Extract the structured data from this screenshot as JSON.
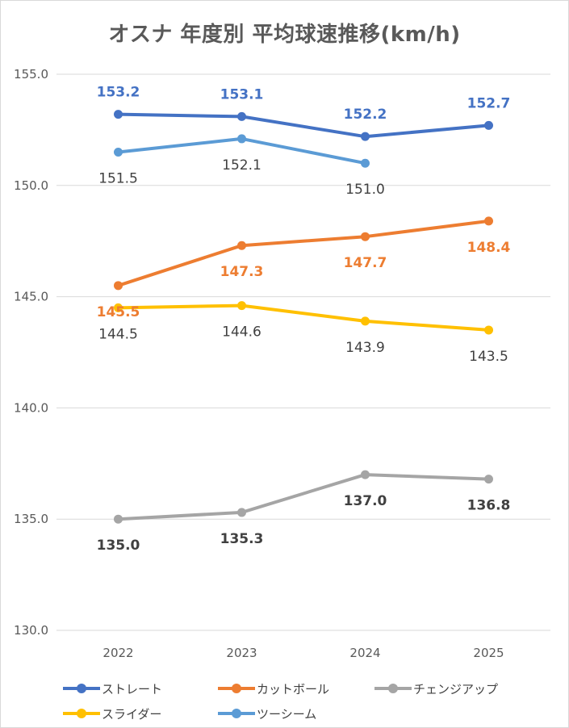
{
  "chart_data": {
    "type": "line",
    "title": "オスナ 年度別 平均球速推移(km/h)",
    "categories": [
      "2022",
      "2023",
      "2024",
      "2025"
    ],
    "ylim": [
      130.0,
      155.0
    ],
    "yticks": [
      "130.0",
      "135.0",
      "140.0",
      "145.0",
      "150.0",
      "155.0"
    ],
    "grid": true,
    "legend_position": "bottom",
    "series": [
      {
        "name": "ストレート",
        "color": "#4472C4",
        "values": [
          153.2,
          153.1,
          152.2,
          152.7
        ],
        "labels": [
          "153.2",
          "153.1",
          "152.2",
          "152.7"
        ],
        "label_pos": "above",
        "label_color": "#4472C4",
        "label_bold": true
      },
      {
        "name": "カットボール",
        "color": "#ED7D31",
        "values": [
          145.5,
          147.3,
          147.7,
          148.4
        ],
        "labels": [
          "145.5",
          "147.3",
          "147.7",
          "148.4"
        ],
        "label_pos": "below",
        "label_color": "#ED7D31",
        "label_bold": true
      },
      {
        "name": "チェンジアップ",
        "color": "#A5A5A5",
        "values": [
          135.0,
          135.3,
          137.0,
          136.8
        ],
        "labels": [
          "135.0",
          "135.3",
          "137.0",
          "136.8"
        ],
        "label_pos": "below",
        "label_color": "#404040",
        "label_bold": true
      },
      {
        "name": "スライダー",
        "color": "#FFC000",
        "values": [
          144.5,
          144.6,
          143.9,
          143.5
        ],
        "labels": [
          "144.5",
          "144.6",
          "143.9",
          "143.5"
        ],
        "label_pos": "below",
        "label_color": "#404040",
        "label_bold": false
      },
      {
        "name": "ツーシーム",
        "color": "#5B9BD5",
        "values": [
          151.5,
          152.1,
          151.0,
          null
        ],
        "labels": [
          "151.5",
          "152.1",
          "151.0",
          null
        ],
        "label_pos": "below",
        "label_color": "#404040",
        "label_bold": false
      }
    ]
  }
}
